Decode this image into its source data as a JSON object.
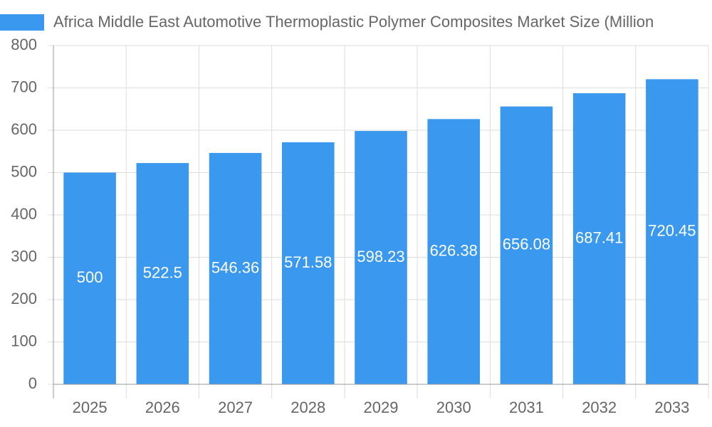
{
  "chart_data": {
    "type": "bar",
    "series": [
      {
        "name": "Africa Middle East Automotive Thermoplastic Polymer Composites Market Size (Million",
        "color": "#3a99ee",
        "values": [
          500,
          522.5,
          546.36,
          571.58,
          598.23,
          626.38,
          656.08,
          687.41,
          720.45
        ]
      }
    ],
    "categories": [
      "2025",
      "2026",
      "2027",
      "2028",
      "2029",
      "2030",
      "2031",
      "2032",
      "2033"
    ],
    "ylim": [
      0,
      800
    ],
    "yticks": [
      0,
      100,
      200,
      300,
      400,
      500,
      600,
      700,
      800
    ],
    "grid": true
  }
}
